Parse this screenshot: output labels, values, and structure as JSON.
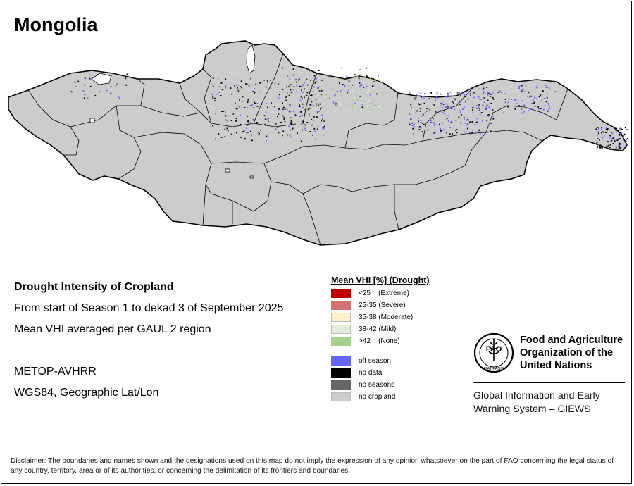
{
  "map": {
    "title": "Mongolia",
    "fill_color": "#cccccc",
    "border_color": "#000000"
  },
  "info": {
    "heading": "Drought Intensity of Cropland",
    "period": "From start of Season 1 to dekad 3 of September 2025",
    "metric": "Mean VHI averaged per GAUL 2 region",
    "sensor": "METOP-AVHRR",
    "projection": "WGS84, Geographic Lat/Lon"
  },
  "legend": {
    "title": "Mean VHI [%] (Drought)",
    "items": [
      {
        "label": "<25    (Extreme)",
        "color": "#c00000"
      },
      {
        "label": "25-35 (Severe)",
        "color": "#d47070"
      },
      {
        "label": "35-38 (Moderate)",
        "color": "#fff0c8"
      },
      {
        "label": "38-42 (Mild)",
        "color": "#e2eed8"
      },
      {
        "label": ">42    (None)",
        "color": "#a8d08d"
      }
    ],
    "extra_items": [
      {
        "label": "off season",
        "color": "#6666ff"
      },
      {
        "label": "no data",
        "color": "#000000"
      },
      {
        "label": "no seasons",
        "color": "#666666"
      },
      {
        "label": "no cropland",
        "color": "#cccccc"
      }
    ]
  },
  "fao": {
    "logo_text": "FAO",
    "logo_motto": "FIAT PANIS",
    "name_line1": "Food and Agriculture",
    "name_line2": "Organization of the",
    "name_line3": "United Nations",
    "system_line1": "Global Information and Early",
    "system_line2": "Warning System – GIEWS"
  },
  "disclaimer": "Disclaimer: The boundaries and names shown and the designations used on this map do not imply the expression of any opinion whatsoever on the part of FAO concerning the legal status of any country, territory, area or of its authorities, or concerning the delimitation of its frontiers and boundaries."
}
